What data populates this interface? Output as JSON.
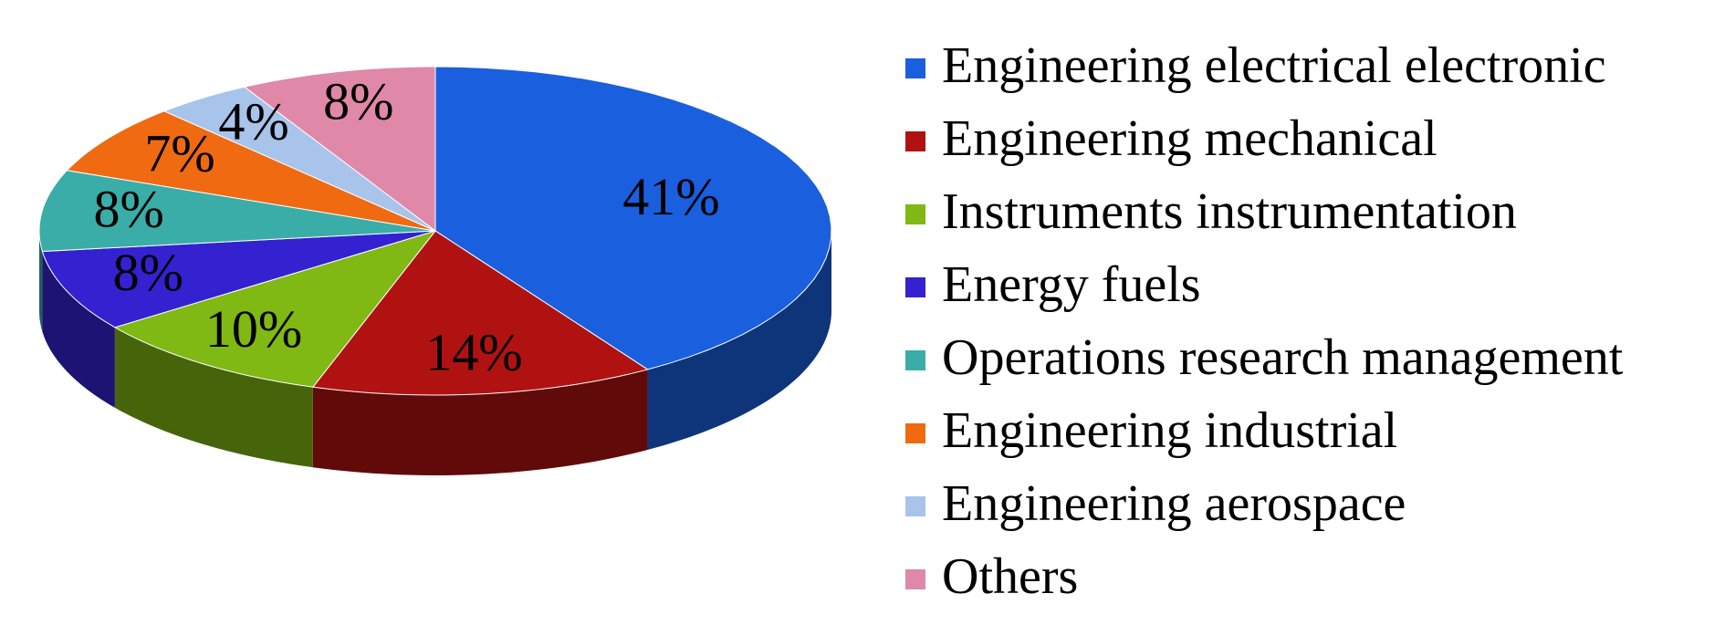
{
  "chart_data": {
    "type": "pie",
    "categories": [
      "Engineering electrical electronic",
      "Engineering mechanical",
      "Instruments instrumentation",
      "Energy fuels",
      "Operations research management",
      "Engineering industrial",
      "Engineering aerospace",
      "Others"
    ],
    "values": [
      41,
      14,
      10,
      8,
      8,
      7,
      4,
      8
    ],
    "value_labels": [
      "41%",
      "14%",
      "10%",
      "8%",
      "8%",
      "7%",
      "4%",
      "8%"
    ],
    "colors": [
      "#1a5fde",
      "#b01212",
      "#80b814",
      "#3422d0",
      "#3aada8",
      "#f06a12",
      "#a8c4ea",
      "#e088a8"
    ],
    "legend": "right"
  }
}
